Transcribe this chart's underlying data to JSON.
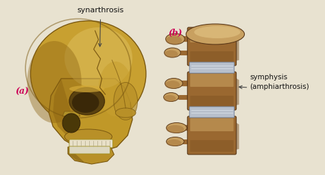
{
  "bg_color": "#e8e2d0",
  "fig_width": 4.74,
  "fig_height": 2.56,
  "dpi": 100,
  "label_a": "(a)",
  "label_b": "(b)",
  "label_synarthrosis": "synarthrosis",
  "label_symphisis": "symphysis\n(amphiarthrosis)",
  "label_a_color": "#cc0055",
  "label_b_color": "#cc0055",
  "label_text_color": "#111111",
  "skull_golden": "#c8a030",
  "skull_mid": "#b08828",
  "skull_dark": "#7a5c10",
  "skull_highlight": "#dfc060",
  "skull_shadow": "#8a6418",
  "vert_light": "#c8a060",
  "vert_mid": "#9a6830",
  "vert_dark": "#5a3818",
  "disc_color": "#c0c8d8",
  "disc_edge": "#8090a8"
}
